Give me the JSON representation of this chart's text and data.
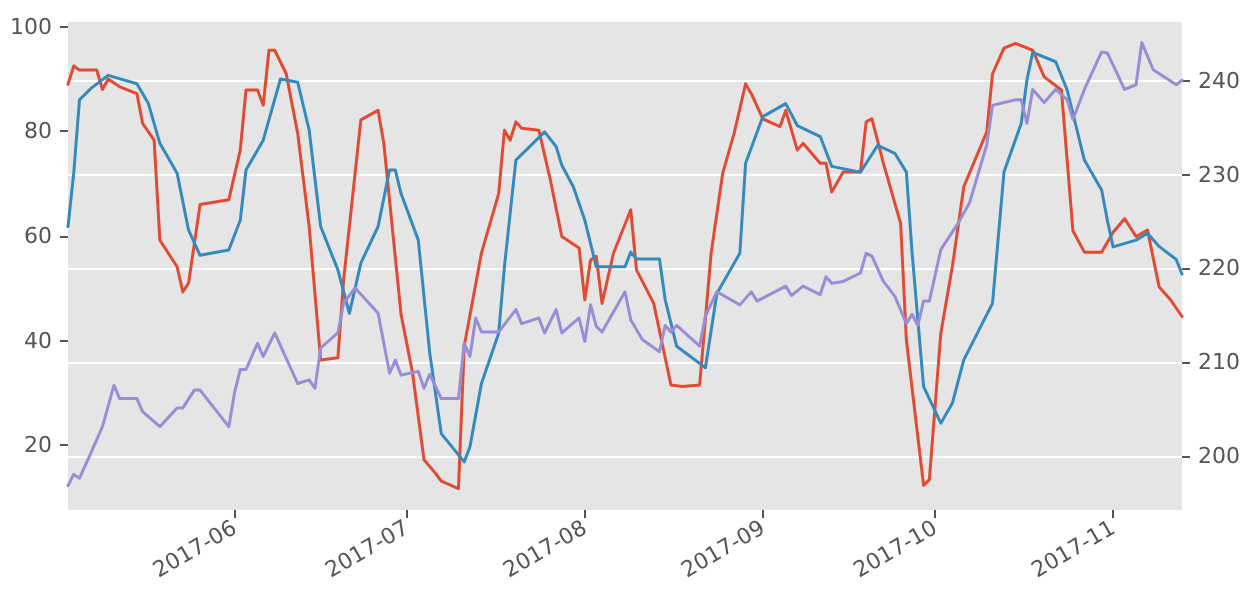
{
  "chart_data": {
    "type": "line",
    "marker": "none",
    "line_style": "solid",
    "grid": "y",
    "xlim": [
      "2017-05-03",
      "2017-11-13"
    ],
    "xticks": [
      {
        "value": "2017-06-01",
        "label": "2017-06"
      },
      {
        "value": "2017-07-01",
        "label": "2017-07"
      },
      {
        "value": "2017-08-01",
        "label": "2017-08"
      },
      {
        "value": "2017-09-01",
        "label": "2017-09"
      },
      {
        "value": "2017-10-01",
        "label": "2017-10"
      },
      {
        "value": "2017-11-01",
        "label": "2017-11"
      }
    ],
    "ylim": [
      7.6,
      100.9
    ],
    "yticks": [
      20,
      40,
      60,
      80,
      100
    ],
    "y2lim": [
      194.2,
      246.3
    ],
    "y2ticks": [
      200,
      210,
      220,
      230,
      240
    ],
    "series": [
      {
        "color": "#e24a33",
        "x": [
          "2017-05-03",
          "2017-05-04",
          "2017-05-05",
          "2017-05-08",
          "2017-05-09",
          "2017-05-10",
          "2017-05-12",
          "2017-05-15",
          "2017-05-16",
          "2017-05-18",
          "2017-05-19",
          "2017-05-22",
          "2017-05-23",
          "2017-05-24",
          "2017-05-26",
          "2017-05-31",
          "2017-06-02",
          "2017-06-03",
          "2017-06-05",
          "2017-06-06",
          "2017-06-07",
          "2017-06-08",
          "2017-06-10",
          "2017-06-12",
          "2017-06-14",
          "2017-06-16",
          "2017-06-19",
          "2017-06-20",
          "2017-06-23",
          "2017-06-26",
          "2017-06-27",
          "2017-06-30",
          "2017-07-02",
          "2017-07-04",
          "2017-07-06",
          "2017-07-07",
          "2017-07-10",
          "2017-07-11",
          "2017-07-14",
          "2017-07-17",
          "2017-07-18",
          "2017-07-19",
          "2017-07-20",
          "2017-07-21",
          "2017-07-24",
          "2017-07-26",
          "2017-07-28",
          "2017-07-31",
          "2017-08-01",
          "2017-08-02",
          "2017-08-03",
          "2017-08-04",
          "2017-08-06",
          "2017-08-09",
          "2017-08-10",
          "2017-08-13",
          "2017-08-16",
          "2017-08-18",
          "2017-08-21",
          "2017-08-23",
          "2017-08-25",
          "2017-08-27",
          "2017-08-29",
          "2017-08-30",
          "2017-09-01",
          "2017-09-04",
          "2017-09-05",
          "2017-09-07",
          "2017-09-08",
          "2017-09-11",
          "2017-09-12",
          "2017-09-13",
          "2017-09-15",
          "2017-09-18",
          "2017-09-19",
          "2017-09-20",
          "2017-09-22",
          "2017-09-25",
          "2017-09-26",
          "2017-09-29",
          "2017-09-30",
          "2017-10-02",
          "2017-10-04",
          "2017-10-06",
          "2017-10-10",
          "2017-10-11",
          "2017-10-13",
          "2017-10-15",
          "2017-10-18",
          "2017-10-20",
          "2017-10-23",
          "2017-10-25",
          "2017-10-27",
          "2017-10-30",
          "2017-11-01",
          "2017-11-03",
          "2017-11-05",
          "2017-11-07",
          "2017-11-09",
          "2017-11-11",
          "2017-11-13"
        ],
        "values": [
          89,
          92.5,
          91.7,
          91.7,
          88,
          90,
          88.5,
          87.2,
          81.5,
          78.3,
          59.2,
          54.1,
          49.3,
          51,
          66,
          66.9,
          76.4,
          87.9,
          87.9,
          85,
          95.5,
          95.5,
          91,
          79.6,
          61.8,
          36.3,
          36.7,
          51.6,
          82.2,
          84,
          77.7,
          45,
          33.8,
          17.2,
          14.6,
          13.1,
          11.7,
          38.9,
          56.7,
          68.1,
          80.2,
          78.3,
          81.8,
          80.6,
          80.2,
          70.7,
          59.9,
          57.7,
          47.8,
          55.4,
          56.1,
          47.1,
          56.7,
          65,
          53.5,
          47.1,
          31.5,
          31.2,
          31.5,
          56.7,
          71.9,
          79.6,
          89.1,
          87.2,
          82.4,
          80.9,
          84,
          76.4,
          77.7,
          73.9,
          73.9,
          68.4,
          72.2,
          72.2,
          81.8,
          82.4,
          73.9,
          62.4,
          40.1,
          12.3,
          13.4,
          41.4,
          54.1,
          69.4,
          79.9,
          91,
          95.9,
          96.8,
          95.5,
          90.4,
          87.9,
          61,
          56.9,
          56.9,
          60.7,
          63.3,
          59.9,
          61.1,
          50.3,
          47.8,
          44.6
        ]
      },
      {
        "color": "#348abd",
        "x": [
          "2017-05-03",
          "2017-05-04",
          "2017-05-05",
          "2017-05-07",
          "2017-05-10",
          "2017-05-15",
          "2017-05-17",
          "2017-05-19",
          "2017-05-22",
          "2017-05-24",
          "2017-05-26",
          "2017-05-31",
          "2017-06-02",
          "2017-06-03",
          "2017-06-06",
          "2017-06-09",
          "2017-06-12",
          "2017-06-14",
          "2017-06-16",
          "2017-06-19",
          "2017-06-21",
          "2017-06-23",
          "2017-06-26",
          "2017-06-28",
          "2017-06-29",
          "2017-06-30",
          "2017-07-03",
          "2017-07-05",
          "2017-07-07",
          "2017-07-11",
          "2017-07-12",
          "2017-07-14",
          "2017-07-17",
          "2017-07-18",
          "2017-07-20",
          "2017-07-25",
          "2017-07-27",
          "2017-07-28",
          "2017-07-30",
          "2017-08-01",
          "2017-08-03",
          "2017-08-08",
          "2017-08-09",
          "2017-08-10",
          "2017-08-14",
          "2017-08-15",
          "2017-08-17",
          "2017-08-22",
          "2017-08-24",
          "2017-08-28",
          "2017-08-29",
          "2017-09-01",
          "2017-09-05",
          "2017-09-07",
          "2017-09-11",
          "2017-09-13",
          "2017-09-18",
          "2017-09-19",
          "2017-09-21",
          "2017-09-24",
          "2017-09-26",
          "2017-09-27",
          "2017-09-29",
          "2017-10-02",
          "2017-10-04",
          "2017-10-06",
          "2017-10-11",
          "2017-10-13",
          "2017-10-16",
          "2017-10-17",
          "2017-10-18",
          "2017-10-22",
          "2017-10-24",
          "2017-10-27",
          "2017-10-30",
          "2017-10-31",
          "2017-11-01",
          "2017-11-05",
          "2017-11-07",
          "2017-11-09",
          "2017-11-12",
          "2017-11-13"
        ],
        "values": [
          61.8,
          72,
          86,
          88.2,
          90.7,
          89.1,
          85.3,
          77.7,
          72,
          61.1,
          56.3,
          57.3,
          63,
          72.6,
          78.3,
          90,
          89.4,
          80.2,
          61.8,
          53.5,
          45.2,
          54.8,
          61.8,
          72.6,
          72.6,
          68.1,
          59.2,
          37.6,
          22.2,
          16.8,
          19.7,
          31.8,
          41.4,
          54.1,
          74.5,
          79.9,
          77.1,
          73.5,
          69.4,
          63,
          54.1,
          54.1,
          56.9,
          55.6,
          55.6,
          47.8,
          38.9,
          34.8,
          49,
          56.7,
          73.9,
          82.8,
          85.3,
          81.1,
          79,
          73.3,
          72.2,
          73.9,
          77.3,
          75.8,
          72.2,
          56.7,
          31.2,
          24.2,
          28,
          36.3,
          47.1,
          72.2,
          81.5,
          89.8,
          95.1,
          93.3,
          87.9,
          74.5,
          68.8,
          63,
          57.9,
          59.2,
          60.5,
          58,
          55.5,
          52.7
        ]
      },
      {
        "color": "#988ed5",
        "axis": "y2",
        "x": [
          "2017-05-03",
          "2017-05-04",
          "2017-05-05",
          "2017-05-07",
          "2017-05-09",
          "2017-05-11",
          "2017-05-12",
          "2017-05-15",
          "2017-05-16",
          "2017-05-19",
          "2017-05-22",
          "2017-05-23",
          "2017-05-25",
          "2017-05-26",
          "2017-05-31",
          "2017-06-01",
          "2017-06-02",
          "2017-06-03",
          "2017-06-05",
          "2017-06-06",
          "2017-06-08",
          "2017-06-12",
          "2017-06-14",
          "2017-06-15",
          "2017-06-16",
          "2017-06-19",
          "2017-06-20",
          "2017-06-22",
          "2017-06-26",
          "2017-06-28",
          "2017-06-29",
          "2017-06-30",
          "2017-07-03",
          "2017-07-04",
          "2017-07-05",
          "2017-07-07",
          "2017-07-10",
          "2017-07-11",
          "2017-07-12",
          "2017-07-13",
          "2017-07-14",
          "2017-07-17",
          "2017-07-20",
          "2017-07-21",
          "2017-07-24",
          "2017-07-25",
          "2017-07-27",
          "2017-07-28",
          "2017-07-31",
          "2017-08-01",
          "2017-08-02",
          "2017-08-03",
          "2017-08-04",
          "2017-08-08",
          "2017-08-09",
          "2017-08-11",
          "2017-08-14",
          "2017-08-15",
          "2017-08-16",
          "2017-08-17",
          "2017-08-21",
          "2017-08-22",
          "2017-08-24",
          "2017-08-28",
          "2017-08-30",
          "2017-08-31",
          "2017-09-05",
          "2017-09-06",
          "2017-09-08",
          "2017-09-11",
          "2017-09-12",
          "2017-09-13",
          "2017-09-15",
          "2017-09-18",
          "2017-09-19",
          "2017-09-20",
          "2017-09-22",
          "2017-09-24",
          "2017-09-26",
          "2017-09-27",
          "2017-09-28",
          "2017-09-29",
          "2017-09-30",
          "2017-10-02",
          "2017-10-05",
          "2017-10-07",
          "2017-10-10",
          "2017-10-11",
          "2017-10-15",
          "2017-10-16",
          "2017-10-17",
          "2017-10-18",
          "2017-10-20",
          "2017-10-22",
          "2017-10-24",
          "2017-10-25",
          "2017-10-27",
          "2017-10-30",
          "2017-10-31",
          "2017-11-03",
          "2017-11-05",
          "2017-11-06",
          "2017-11-08",
          "2017-11-12",
          "2017-11-13"
        ],
        "values": [
          196.8,
          198,
          197.6,
          200.3,
          203.1,
          207.5,
          206.1,
          206.1,
          204.7,
          203.1,
          205.1,
          205.1,
          207,
          207,
          203.1,
          206.7,
          209.2,
          209.2,
          212,
          210.6,
          213.1,
          207.7,
          208.1,
          207.2,
          211.5,
          213.1,
          216.3,
          217.9,
          215.2,
          208.8,
          210.2,
          208.6,
          209,
          207.2,
          208.7,
          206.1,
          206.1,
          212,
          210.6,
          214.7,
          213.2,
          213.2,
          215.6,
          214.1,
          214.7,
          213.1,
          215.6,
          213.1,
          214.7,
          212.2,
          216.1,
          213.8,
          213.2,
          217.5,
          214.5,
          212.4,
          211.1,
          213.9,
          213.2,
          213.9,
          211.7,
          214.9,
          217.5,
          216.1,
          217.5,
          216.5,
          218.1,
          217.1,
          218.1,
          217.2,
          219.1,
          218.4,
          218.6,
          219.5,
          221.6,
          221.3,
          218.6,
          217,
          214.1,
          215.1,
          213.9,
          216.5,
          216.5,
          222,
          224.8,
          227,
          233.2,
          237.4,
          238,
          238,
          235.5,
          239.1,
          237.7,
          239.1,
          238,
          235.9,
          239.1,
          243.1,
          243,
          239.1,
          239.6,
          244.1,
          241.2,
          239.6,
          240.1
        ]
      }
    ]
  }
}
